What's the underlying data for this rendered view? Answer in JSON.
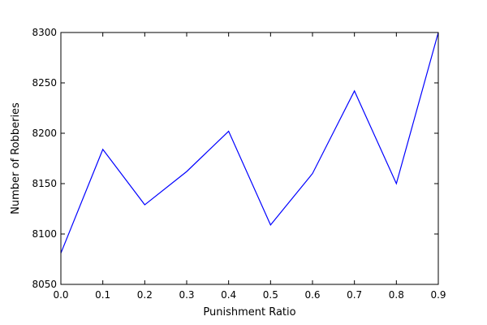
{
  "chart_data": {
    "type": "line",
    "title": "",
    "xlabel": "Punishment Ratio",
    "ylabel": "Number of Robberies",
    "xlim": [
      0.0,
      0.9
    ],
    "ylim": [
      8050,
      8300
    ],
    "xticks": [
      "0.0",
      "0.1",
      "0.2",
      "0.3",
      "0.4",
      "0.5",
      "0.6",
      "0.7",
      "0.8",
      "0.9"
    ],
    "yticks": [
      "8050",
      "8100",
      "8150",
      "8200",
      "8250",
      "8300"
    ],
    "grid": false,
    "line_color": "#0000ff",
    "series": [
      {
        "x": [
          0.0,
          0.1,
          0.2,
          0.3,
          0.4,
          0.5,
          0.6,
          0.7,
          0.8,
          0.9
        ],
        "y": [
          8081,
          8184,
          8129,
          8162,
          8202,
          8109,
          8160,
          8242,
          8150,
          8300
        ]
      }
    ]
  }
}
